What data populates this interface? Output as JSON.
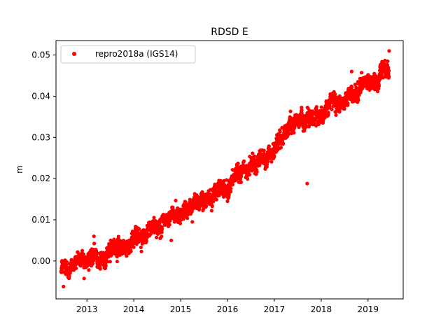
{
  "chart_data": {
    "type": "scatter",
    "title": "RDSD E",
    "xlabel": "",
    "ylabel": "m",
    "xlim": [
      2012.34,
      2019.75
    ],
    "ylim": [
      -0.0092,
      0.0535
    ],
    "x_ticks": [
      2013,
      2014,
      2015,
      2016,
      2017,
      2018,
      2019
    ],
    "y_ticks": [
      0.0,
      0.01,
      0.02,
      0.03,
      0.04,
      0.05
    ],
    "y_tick_labels": [
      "0.00",
      "0.01",
      "0.02",
      "0.03",
      "0.04",
      "0.05"
    ],
    "grid": false,
    "legend": {
      "placement": "top-left"
    },
    "series": [
      {
        "name": "repro2018a (IGS14)",
        "color": "#ff0000",
        "marker": "circle",
        "x_range": [
          2012.45,
          2019.45
        ],
        "trend_y": [
          [
            2012.45,
            -0.0025
          ],
          [
            2012.8,
            0.0005
          ],
          [
            2013.0,
            0.001
          ],
          [
            2013.2,
            0.0005
          ],
          [
            2013.6,
            0.0025
          ],
          [
            2014.0,
            0.0055
          ],
          [
            2014.5,
            0.008
          ],
          [
            2015.0,
            0.012
          ],
          [
            2015.5,
            0.016
          ],
          [
            2016.0,
            0.019
          ],
          [
            2016.5,
            0.023
          ],
          [
            2017.0,
            0.027
          ],
          [
            2017.3,
            0.032
          ],
          [
            2017.6,
            0.0345
          ],
          [
            2018.0,
            0.036
          ],
          [
            2018.5,
            0.04
          ],
          [
            2019.0,
            0.0425
          ],
          [
            2019.45,
            0.047
          ]
        ],
        "outliers": [
          {
            "x": 2017.7,
            "y": 0.0188
          },
          {
            "x": 2012.9,
            "y": 0.0025
          },
          {
            "x": 2013.15,
            "y": 0.006
          },
          {
            "x": 2014.8,
            "y": 0.005
          },
          {
            "x": 2015.25,
            "y": 0.0095
          },
          {
            "x": 2016.0,
            "y": 0.0145
          },
          {
            "x": 2018.65,
            "y": 0.046
          },
          {
            "x": 2019.45,
            "y": 0.051
          },
          {
            "x": 2012.5,
            "y": -0.0062
          }
        ]
      }
    ]
  }
}
